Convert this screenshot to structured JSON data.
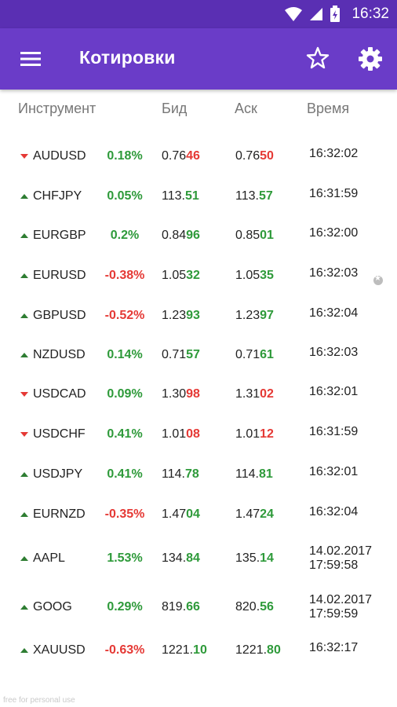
{
  "status_bar": {
    "time": "16:32"
  },
  "app_bar": {
    "title": "Котировки"
  },
  "columns": {
    "instrument": "Инструмент",
    "bid": "Бид",
    "ask": "Аск",
    "time": "Время"
  },
  "quotes": [
    {
      "symbol": "AUDUSD",
      "direction": "down",
      "change": "0.18%",
      "change_sign": "pos",
      "bid_prefix": "0.76",
      "bid_big": "46",
      "ask_prefix": "0.76",
      "ask_big": "50",
      "price_color": "neg",
      "time1": "16:32:02",
      "time2": ""
    },
    {
      "symbol": "CHFJPY",
      "direction": "up",
      "change": "0.05%",
      "change_sign": "pos",
      "bid_prefix": "113.",
      "bid_big": "51",
      "ask_prefix": "113.",
      "ask_big": "57",
      "price_color": "pos",
      "time1": "16:31:59",
      "time2": ""
    },
    {
      "symbol": "EURGBP",
      "direction": "up",
      "change": "0.2%",
      "change_sign": "pos",
      "bid_prefix": "0.84",
      "bid_big": "96",
      "ask_prefix": "0.85",
      "ask_big": "01",
      "price_color": "pos",
      "time1": "16:32:00",
      "time2": ""
    },
    {
      "symbol": "EURUSD",
      "direction": "up",
      "change": "-0.38%",
      "change_sign": "neg",
      "bid_prefix": "1.05",
      "bid_big": "32",
      "ask_prefix": "1.05",
      "ask_big": "35",
      "price_color": "pos",
      "time1": "16:32:03",
      "time2": ""
    },
    {
      "symbol": "GBPUSD",
      "direction": "up",
      "change": "-0.52%",
      "change_sign": "neg",
      "bid_prefix": "1.23",
      "bid_big": "93",
      "ask_prefix": "1.23",
      "ask_big": "97",
      "price_color": "pos",
      "time1": "16:32:04",
      "time2": ""
    },
    {
      "symbol": "NZDUSD",
      "direction": "up",
      "change": "0.14%",
      "change_sign": "pos",
      "bid_prefix": "0.71",
      "bid_big": "57",
      "ask_prefix": "0.71",
      "ask_big": "61",
      "price_color": "pos",
      "time1": "16:32:03",
      "time2": ""
    },
    {
      "symbol": "USDCAD",
      "direction": "down",
      "change": "0.09%",
      "change_sign": "pos",
      "bid_prefix": "1.30",
      "bid_big": "98",
      "ask_prefix": "1.31",
      "ask_big": "02",
      "price_color": "neg",
      "time1": "16:32:01",
      "time2": ""
    },
    {
      "symbol": "USDCHF",
      "direction": "down",
      "change": "0.41%",
      "change_sign": "pos",
      "bid_prefix": "1.01",
      "bid_big": "08",
      "ask_prefix": "1.01",
      "ask_big": "12",
      "price_color": "neg",
      "time1": "16:31:59",
      "time2": ""
    },
    {
      "symbol": "USDJPY",
      "direction": "up",
      "change": "0.41%",
      "change_sign": "pos",
      "bid_prefix": "114.",
      "bid_big": "78",
      "ask_prefix": "114.",
      "ask_big": "81",
      "price_color": "pos",
      "time1": "16:32:01",
      "time2": ""
    },
    {
      "symbol": "EURNZD",
      "direction": "up",
      "change": "-0.35%",
      "change_sign": "neg",
      "bid_prefix": "1.47",
      "bid_big": "04",
      "ask_prefix": "1.47",
      "ask_big": "24",
      "price_color": "pos",
      "time1": "16:32:04",
      "time2": ""
    },
    {
      "symbol": "AAPL",
      "direction": "up",
      "change": "1.53%",
      "change_sign": "pos",
      "bid_prefix": "134.",
      "bid_big": "84",
      "ask_prefix": "135.",
      "ask_big": "14",
      "price_color": "pos",
      "time1": "14.02.2017",
      "time2": "17:59:58"
    },
    {
      "symbol": "GOOG",
      "direction": "up",
      "change": "0.29%",
      "change_sign": "pos",
      "bid_prefix": "819.",
      "bid_big": "66",
      "ask_prefix": "820.",
      "ask_big": "56",
      "price_color": "pos",
      "time1": "14.02.2017",
      "time2": "17:59:59"
    },
    {
      "symbol": "XAUUSD",
      "direction": "up",
      "change": "-0.63%",
      "change_sign": "neg",
      "bid_prefix": "1221.",
      "bid_big": "10",
      "ask_prefix": "1221.",
      "ask_big": "80",
      "price_color": "pos",
      "time1": "16:32:17",
      "time2": ""
    }
  ],
  "watermark": "free for personal use",
  "colors": {
    "app_bar": "#6a3cc8",
    "status_bar": "#5a2fb3",
    "positive": "#2e9a3a",
    "negative": "#e53935"
  }
}
